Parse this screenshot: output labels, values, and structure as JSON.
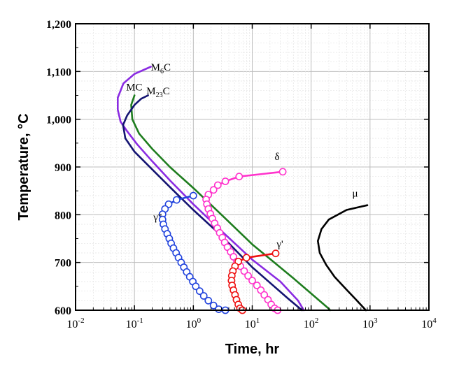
{
  "chart_data": {
    "type": "line",
    "xlabel": "Time, hr",
    "ylabel": "Temperature, °C",
    "x_scale": "log",
    "xlim": [
      0.01,
      10000
    ],
    "ylim": [
      600,
      1200
    ],
    "grid": true,
    "colors": {
      "M6C": "#8a2be2",
      "MC": "#1e7d1e",
      "M23C6": "#141472",
      "delta": "#ff33cc",
      "gamma_double_prime": "#2244dd",
      "gamma_prime": "#ee1111",
      "mu": "#000000"
    },
    "y_ticks": [
      {
        "value": 600,
        "label": "600"
      },
      {
        "value": 700,
        "label": "700"
      },
      {
        "value": 800,
        "label": "800"
      },
      {
        "value": 900,
        "label": "900"
      },
      {
        "value": 1000,
        "label": "1,000"
      },
      {
        "value": 1100,
        "label": "1,100"
      },
      {
        "value": 1200,
        "label": "1,200"
      }
    ],
    "x_ticks": [
      {
        "value": 0.01,
        "base": "10",
        "exp": "-2"
      },
      {
        "value": 0.1,
        "base": "10",
        "exp": "-1"
      },
      {
        "value": 1,
        "base": "10",
        "exp": "0"
      },
      {
        "value": 10,
        "base": "10",
        "exp": "1"
      },
      {
        "value": 100,
        "base": "10",
        "exp": "2"
      },
      {
        "value": 1000,
        "base": "10",
        "exp": "3"
      },
      {
        "value": 10000,
        "base": "10",
        "exp": "4"
      }
    ],
    "series": [
      {
        "key": "M6C",
        "label_main": "M",
        "label_sub": "6",
        "label_tail": "C",
        "label_at": [
          0.19,
          1102
        ],
        "marker": "none",
        "points": [
          [
            0.19,
            1110
          ],
          [
            0.1,
            1095
          ],
          [
            0.065,
            1075
          ],
          [
            0.052,
            1045
          ],
          [
            0.052,
            1020
          ],
          [
            0.058,
            995
          ],
          [
            0.075,
            975
          ],
          [
            0.11,
            948
          ],
          [
            0.2,
            912
          ],
          [
            0.4,
            872
          ],
          [
            1,
            822
          ],
          [
            3,
            766
          ],
          [
            10,
            706
          ],
          [
            30,
            660
          ],
          [
            60,
            620
          ],
          [
            75,
            600
          ]
        ]
      },
      {
        "key": "MC",
        "label_main": "MC",
        "label_sub": "",
        "label_tail": "",
        "label_at": [
          0.072,
          1060
        ],
        "marker": "none",
        "points": [
          [
            0.1,
            1050
          ],
          [
            0.088,
            1030
          ],
          [
            0.092,
            1000
          ],
          [
            0.12,
            970
          ],
          [
            0.2,
            938
          ],
          [
            0.4,
            900
          ],
          [
            1,
            856
          ],
          [
            3,
            800
          ],
          [
            10,
            738
          ],
          [
            50,
            667
          ],
          [
            200,
            603
          ],
          [
            210,
            600
          ]
        ]
      },
      {
        "key": "M23C6",
        "label_main": "M",
        "label_sub": "23",
        "label_tail": "C",
        "label_at": [
          0.16,
          1052
        ],
        "marker": "none",
        "points": [
          [
            0.17,
            1050
          ],
          [
            0.13,
            1043
          ],
          [
            0.1,
            1030
          ],
          [
            0.075,
            1008
          ],
          [
            0.064,
            988
          ],
          [
            0.07,
            960
          ],
          [
            0.1,
            932
          ],
          [
            0.2,
            895
          ],
          [
            0.4,
            858
          ],
          [
            1,
            810
          ],
          [
            3,
            756
          ],
          [
            10,
            690
          ],
          [
            40,
            625
          ],
          [
            70,
            600
          ]
        ]
      },
      {
        "key": "delta",
        "label_main": "δ",
        "label_sub": "",
        "label_tail": "",
        "label_at": [
          24,
          915
        ],
        "marker": "circle",
        "points": [
          [
            33,
            890
          ],
          [
            6,
            880
          ],
          [
            3.5,
            870
          ],
          [
            2.6,
            862
          ],
          [
            2.2,
            852
          ],
          [
            1.8,
            842
          ],
          [
            1.65,
            832
          ],
          [
            1.7,
            822
          ],
          [
            1.8,
            812
          ],
          [
            1.95,
            802
          ],
          [
            2.1,
            792
          ],
          [
            2.3,
            782
          ],
          [
            2.55,
            772
          ],
          [
            2.8,
            762
          ],
          [
            3.1,
            752
          ],
          [
            3.4,
            742
          ],
          [
            3.8,
            732
          ],
          [
            4.3,
            722
          ],
          [
            4.8,
            712
          ],
          [
            5.5,
            702
          ],
          [
            6.3,
            692
          ],
          [
            7.3,
            682
          ],
          [
            8.5,
            672
          ],
          [
            10,
            662
          ],
          [
            12,
            652
          ],
          [
            14,
            642
          ],
          [
            16,
            632
          ],
          [
            18.5,
            622
          ],
          [
            21,
            612
          ],
          [
            24,
            604
          ],
          [
            27,
            600
          ]
        ]
      },
      {
        "key": "gamma_double_prime",
        "label_main": "γ''",
        "label_sub": "",
        "label_tail": "",
        "label_at": [
          0.21,
          788
        ],
        "marker": "circle",
        "points": [
          [
            1.0,
            840
          ],
          [
            0.52,
            831
          ],
          [
            0.38,
            822
          ],
          [
            0.33,
            812
          ],
          [
            0.3,
            801
          ],
          [
            0.3,
            790
          ],
          [
            0.31,
            780
          ],
          [
            0.33,
            770
          ],
          [
            0.36,
            760
          ],
          [
            0.39,
            750
          ],
          [
            0.42,
            740
          ],
          [
            0.46,
            730
          ],
          [
            0.51,
            720
          ],
          [
            0.56,
            710
          ],
          [
            0.62,
            700
          ],
          [
            0.69,
            690
          ],
          [
            0.77,
            680
          ],
          [
            0.87,
            670
          ],
          [
            0.98,
            660
          ],
          [
            1.1,
            650
          ],
          [
            1.28,
            640
          ],
          [
            1.5,
            630
          ],
          [
            1.8,
            620
          ],
          [
            2.2,
            610
          ],
          [
            2.7,
            602
          ],
          [
            3.5,
            600
          ]
        ]
      },
      {
        "key": "gamma_prime",
        "label_main": "γ'",
        "label_sub": "",
        "label_tail": "",
        "label_at": [
          26,
          732
        ],
        "marker": "circle",
        "points": [
          [
            25,
            719
          ],
          [
            8,
            710
          ],
          [
            5.8,
            702
          ],
          [
            5.1,
            692
          ],
          [
            4.7,
            682
          ],
          [
            4.5,
            672
          ],
          [
            4.45,
            662
          ],
          [
            4.55,
            652
          ],
          [
            4.8,
            642
          ],
          [
            5.1,
            632
          ],
          [
            5.4,
            622
          ],
          [
            5.8,
            612
          ],
          [
            6.2,
            604
          ],
          [
            6.8,
            600
          ]
        ]
      },
      {
        "key": "mu",
        "label_main": "μ",
        "label_sub": "",
        "label_tail": "",
        "label_at": [
          500,
          838
        ],
        "marker": "none",
        "points": [
          [
            900,
            820
          ],
          [
            400,
            810
          ],
          [
            200,
            790
          ],
          [
            150,
            770
          ],
          [
            130,
            745
          ],
          [
            140,
            720
          ],
          [
            180,
            695
          ],
          [
            250,
            670
          ],
          [
            400,
            643
          ],
          [
            600,
            620
          ],
          [
            850,
            600
          ]
        ]
      }
    ]
  }
}
